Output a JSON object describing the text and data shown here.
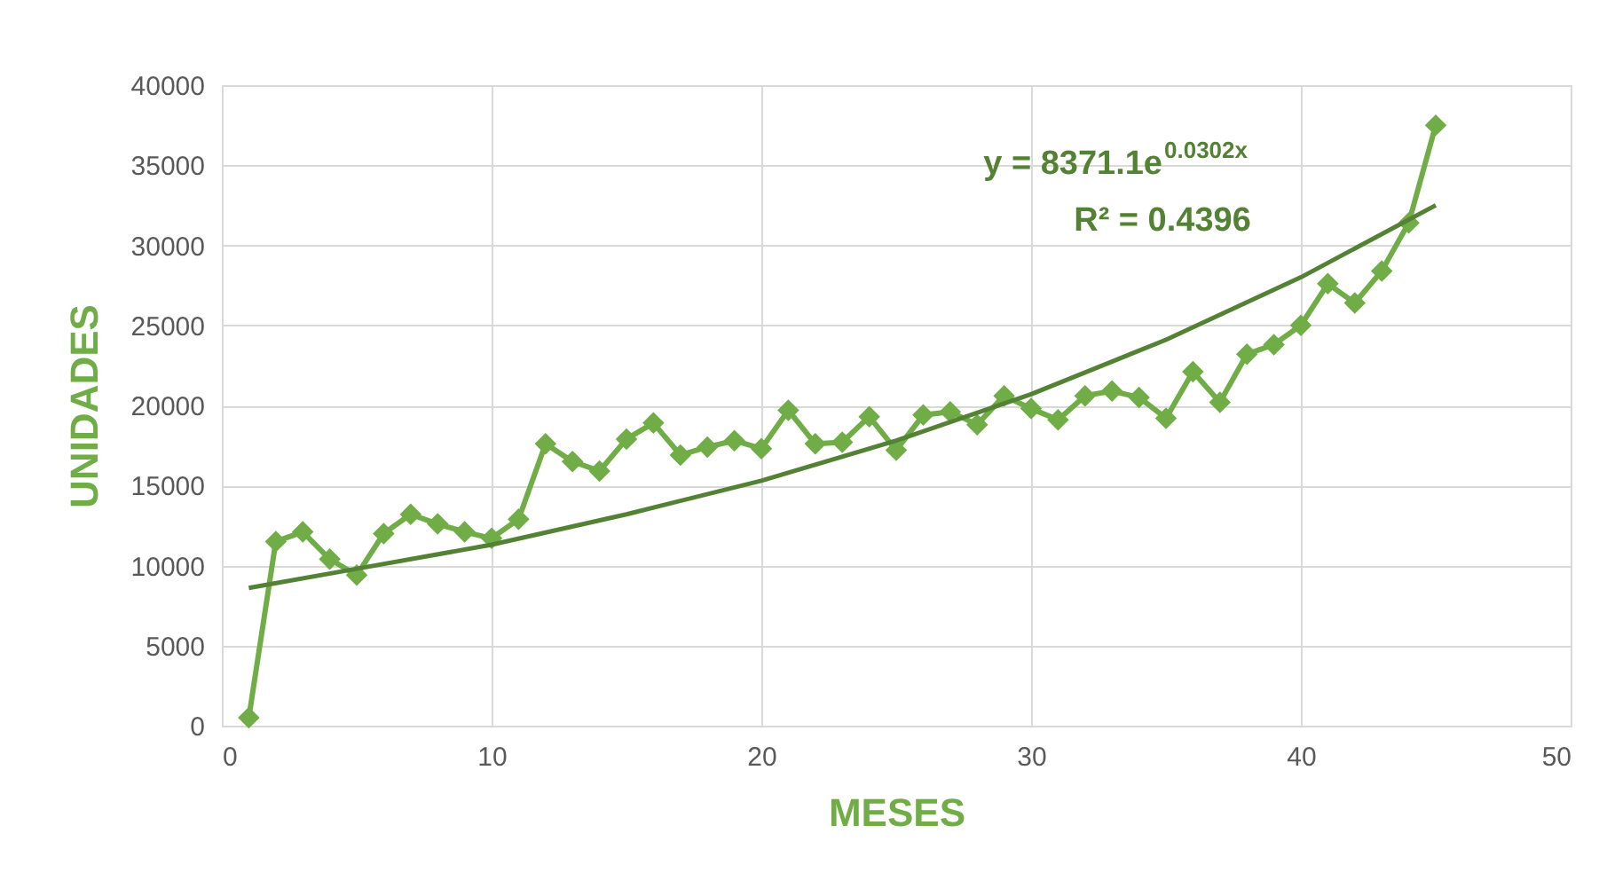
{
  "chart_data": {
    "type": "line",
    "xlabel": "MESES",
    "ylabel": "UNIDADES",
    "annotations": [
      "y = 8371.1e$^{0.0302x}$",
      "R² = 0.4396"
    ],
    "xlim": [
      0,
      50
    ],
    "xticks": [
      0,
      10,
      20,
      30,
      40,
      50
    ],
    "ylim": [
      0,
      40000
    ],
    "yticks": [
      0,
      5000,
      10000,
      15000,
      20000,
      25000,
      30000,
      35000,
      40000
    ],
    "grid": true,
    "legend": false,
    "marker": "diamond",
    "line_style": "solid",
    "series": [
      {
        "color": "#70ad47",
        "x": [
          1,
          2,
          3,
          4,
          5,
          6,
          7,
          8,
          9,
          10,
          11,
          12,
          13,
          14,
          15,
          16,
          17,
          18,
          19,
          20,
          21,
          22,
          23,
          24,
          25,
          26,
          27,
          28,
          29,
          30,
          31,
          32,
          33,
          34,
          35,
          36,
          37,
          38,
          39,
          40,
          41,
          42,
          43,
          44,
          45
        ],
        "values": [
          500,
          11500,
          12100,
          10400,
          9400,
          12000,
          13200,
          12600,
          12100,
          11700,
          12900,
          17600,
          16500,
          15900,
          17900,
          18900,
          16900,
          17400,
          17800,
          17300,
          19700,
          17600,
          17700,
          19300,
          17200,
          19400,
          19600,
          18800,
          20600,
          19800,
          19100,
          20600,
          20900,
          20500,
          19200,
          22100,
          20200,
          23200,
          23800,
          25000,
          27600,
          26400,
          28400,
          31400,
          37500
        ]
      },
      {
        "type": "line",
        "marker": "none",
        "color": "#548235",
        "x": [
          1,
          5,
          10,
          15,
          20,
          25,
          30,
          35,
          40,
          45
        ],
        "values": [
          8600,
          9800,
          11300,
          13200,
          15300,
          17800,
          20700,
          24100,
          28000,
          32500
        ]
      }
    ]
  }
}
